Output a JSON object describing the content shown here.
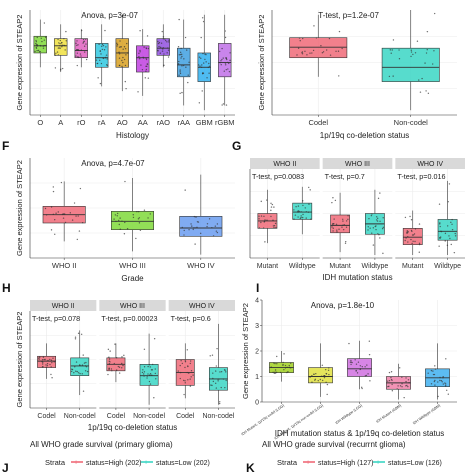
{
  "figure": {
    "panel_letters": [
      "F",
      "G",
      "H",
      "I",
      "J",
      "K"
    ],
    "strata_legend": [
      {
        "title": "Strata",
        "items": [
          {
            "label": "status=High (202)",
            "color": "#f06a78"
          },
          {
            "label": "status=Low (202)",
            "color": "#3ad6c4"
          }
        ]
      },
      {
        "title": "Strata",
        "items": [
          {
            "label": "status=High (127)",
            "color": "#f06a78"
          },
          {
            "label": "status=Low (126)",
            "color": "#3ad6c4"
          }
        ]
      }
    ]
  },
  "chart_data": [
    {
      "id": "histology",
      "type": "boxplot",
      "title": "Anova, p=3e-07",
      "xlabel": "Histology",
      "ylabel": "Gene expression of STEAP2",
      "ylim": [
        0,
        2.2
      ],
      "yticks": [],
      "categories": [
        "O",
        "A",
        "rO",
        "rA",
        "AO",
        "AA",
        "rAO",
        "rAA",
        "GBM",
        "rGBM"
      ],
      "colors": [
        "#7fd93a",
        "#f0e040",
        "#e060c0",
        "#30c8e0",
        "#d8a020",
        "#c040e0",
        "#9050e0",
        "#40a0e0",
        "#30b0f0",
        "#c070e8"
      ],
      "boxes": [
        {
          "q1": 1.3,
          "median": 1.45,
          "q3": 1.65,
          "min": 1.0,
          "max": 2.0
        },
        {
          "q1": 1.25,
          "median": 1.45,
          "q3": 1.6,
          "min": 0.9,
          "max": 1.9
        },
        {
          "q1": 1.2,
          "median": 1.35,
          "q3": 1.6,
          "min": 1.0,
          "max": 1.8
        },
        {
          "q1": 1.0,
          "median": 1.2,
          "q3": 1.5,
          "min": 0.6,
          "max": 1.9
        },
        {
          "q1": 1.0,
          "median": 1.3,
          "q3": 1.6,
          "min": 0.5,
          "max": 2.1
        },
        {
          "q1": 0.9,
          "median": 1.2,
          "q3": 1.45,
          "min": 0.4,
          "max": 1.8
        },
        {
          "q1": 1.25,
          "median": 1.4,
          "q3": 1.6,
          "min": 1.0,
          "max": 1.9
        },
        {
          "q1": 0.8,
          "median": 1.05,
          "q3": 1.4,
          "min": 0.2,
          "max": 2.0
        },
        {
          "q1": 0.7,
          "median": 1.0,
          "q3": 1.3,
          "min": 0.1,
          "max": 2.1
        },
        {
          "q1": 0.8,
          "median": 1.1,
          "q3": 1.5,
          "min": 0.2,
          "max": 2.1
        }
      ]
    },
    {
      "id": "codel",
      "type": "boxplot",
      "title": "T-test, p=1.2e-07",
      "xlabel": "1p/19q co-deletion status",
      "ylabel": "Gene expression of STEAP2",
      "ylim": [
        0,
        2.2
      ],
      "yticks": [],
      "categories": [
        "Codel",
        "Non-codel"
      ],
      "colors": [
        "#f06a78",
        "#3ad6c4"
      ],
      "boxes": [
        {
          "q1": 1.2,
          "median": 1.42,
          "q3": 1.62,
          "min": 0.8,
          "max": 2.1
        },
        {
          "q1": 0.7,
          "median": 1.0,
          "q3": 1.4,
          "min": 0.1,
          "max": 2.2
        }
      ]
    },
    {
      "id": "grade",
      "type": "boxplot",
      "title": "Anova, p=4.7e-07",
      "xlabel": "Grade",
      "ylabel": "Gene expression of STEAP2",
      "ylim": [
        0,
        3
      ],
      "yticks": [],
      "categories": [
        "WHO II",
        "WHO III",
        "WHO IV"
      ],
      "colors": [
        "#f06a78",
        "#7fd93a",
        "#6a9cf0"
      ],
      "boxes": [
        {
          "q1": 1.05,
          "median": 1.3,
          "q3": 1.55,
          "min": 0.5,
          "max": 2.3
        },
        {
          "q1": 0.85,
          "median": 1.1,
          "q3": 1.4,
          "min": 0.2,
          "max": 2.4
        },
        {
          "q1": 0.65,
          "median": 0.9,
          "q3": 1.25,
          "min": 0.1,
          "max": 2.5
        }
      ]
    },
    {
      "id": "idh",
      "type": "boxplot",
      "xlabel": "IDH mutation status",
      "ylabel": "",
      "ylim": [
        0,
        3
      ],
      "yticks": [],
      "facets": [
        {
          "strip": "WHO II",
          "title": "T-test, p=0.0083",
          "categories": [
            "Mutant",
            "Wildtype"
          ],
          "colors": [
            "#f06a78",
            "#3ad6c4"
          ],
          "boxes": [
            {
              "q1": 1.0,
              "median": 1.25,
              "q3": 1.5,
              "min": 0.5,
              "max": 2.3
            },
            {
              "q1": 1.3,
              "median": 1.55,
              "q3": 1.85,
              "min": 0.8,
              "max": 2.4
            }
          ]
        },
        {
          "strip": "WHO III",
          "title": "T-test, p=0.7",
          "categories": [
            "Mutant",
            "Wildtype"
          ],
          "colors": [
            "#f06a78",
            "#3ad6c4"
          ],
          "boxes": [
            {
              "q1": 0.85,
              "median": 1.1,
              "q3": 1.45,
              "min": 0.2,
              "max": 2.2
            },
            {
              "q1": 0.8,
              "median": 1.15,
              "q3": 1.5,
              "min": 0.1,
              "max": 2.3
            }
          ]
        },
        {
          "strip": "WHO IV",
          "title": "T-test, p=0.016",
          "categories": [
            "Mutant",
            "Wildtype"
          ],
          "colors": [
            "#f06a78",
            "#3ad6c4"
          ],
          "boxes": [
            {
              "q1": 0.45,
              "median": 0.7,
              "q3": 1.0,
              "min": 0.1,
              "max": 1.6
            },
            {
              "q1": 0.6,
              "median": 0.9,
              "q3": 1.3,
              "min": 0.1,
              "max": 2.6
            }
          ]
        }
      ]
    },
    {
      "id": "codel_grade",
      "type": "boxplot",
      "xlabel": "1p/19q co-deletion status",
      "ylabel": "Gene expression of STEAP2",
      "ylim": [
        0,
        3
      ],
      "yticks": [],
      "facets": [
        {
          "strip": "WHO II",
          "title": "T-test, p=0.078",
          "categories": [
            "Codel",
            "Non-codel"
          ],
          "colors": [
            "#f06a78",
            "#3ad6c4"
          ],
          "boxes": [
            {
              "q1": 1.25,
              "median": 1.45,
              "q3": 1.6,
              "min": 0.9,
              "max": 2.0
            },
            {
              "q1": 1.0,
              "median": 1.3,
              "q3": 1.55,
              "min": 0.4,
              "max": 2.4
            }
          ]
        },
        {
          "strip": "WHO III",
          "title": "T-test, p=0.00023",
          "categories": [
            "Codel",
            "Non-codel"
          ],
          "colors": [
            "#f06a78",
            "#3ad6c4"
          ],
          "boxes": [
            {
              "q1": 1.15,
              "median": 1.35,
              "q3": 1.55,
              "min": 0.8,
              "max": 2.0
            },
            {
              "q1": 0.7,
              "median": 1.0,
              "q3": 1.35,
              "min": 0.1,
              "max": 2.3
            }
          ]
        },
        {
          "strip": "WHO IV",
          "title": "T-test, p=0.6",
          "categories": [
            "Codel",
            "Non-codel"
          ],
          "colors": [
            "#f06a78",
            "#3ad6c4"
          ],
          "boxes": [
            {
              "q1": 0.7,
              "median": 1.1,
              "q3": 1.5,
              "min": 0.3,
              "max": 2.0
            },
            {
              "q1": 0.55,
              "median": 0.9,
              "q3": 1.25,
              "min": 0.1,
              "max": 2.6
            }
          ]
        }
      ]
    },
    {
      "id": "idh_codel",
      "type": "boxplot",
      "title": "Anova, p=1.8e-10",
      "xlabel": "IDH mutation status & 1p/19q co-deletion status",
      "ylabel": "Gene expression of STEAP2",
      "ylim": [
        0,
        4
      ],
      "yticks": [
        0,
        1,
        2,
        3,
        4
      ],
      "categories": [
        "IDH Mutant, 1p/19q codel (LGG)",
        "IDH Mutant, 1p/19q non-codel (LGG)",
        "IDH Wildtype (LGG)",
        "IDH Mutant (GBM)",
        "IDH Wildtype (GBM)"
      ],
      "colors": [
        "#a0d020",
        "#e0e040",
        "#d070e0",
        "#f080a8",
        "#40b0f0"
      ],
      "boxes": [
        {
          "q1": 1.15,
          "median": 1.35,
          "q3": 1.55,
          "min": 0.8,
          "max": 2.0
        },
        {
          "q1": 0.75,
          "median": 1.0,
          "q3": 1.35,
          "min": 0.2,
          "max": 2.3
        },
        {
          "q1": 1.0,
          "median": 1.3,
          "q3": 1.7,
          "min": 0.5,
          "max": 2.4
        },
        {
          "q1": 0.5,
          "median": 0.75,
          "q3": 1.0,
          "min": 0.1,
          "max": 1.5
        },
        {
          "q1": 0.6,
          "median": 0.95,
          "q3": 1.3,
          "min": 0.1,
          "max": 2.3
        }
      ]
    },
    {
      "id": "survival_primary",
      "type": "line",
      "title": "All WHO grade survival (primary glioma)",
      "series": [
        {
          "name": "status=High (202)",
          "values": []
        },
        {
          "name": "status=Low (202)",
          "values": []
        }
      ]
    },
    {
      "id": "survival_recurrent",
      "type": "line",
      "title": "All WHO grade survival (recurrnt glioma)",
      "series": [
        {
          "name": "status=High (127)",
          "values": []
        },
        {
          "name": "status=Low (126)",
          "values": []
        }
      ]
    }
  ]
}
